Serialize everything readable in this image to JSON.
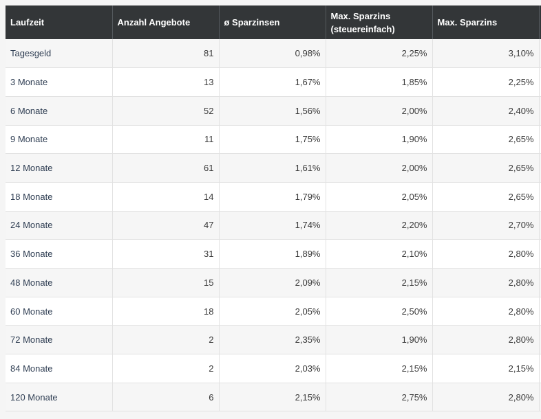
{
  "table": {
    "headers": [
      "Laufzeit",
      "Anzahl Angebote",
      "ø Sparzinsen",
      "Max. Sparzins (steuereinfach)",
      "Max. Sparzins"
    ],
    "rows": [
      [
        "Tagesgeld",
        "81",
        "0,98%",
        "2,25%",
        "3,10%"
      ],
      [
        "3 Monate",
        "13",
        "1,67%",
        "1,85%",
        "2,25%"
      ],
      [
        "6 Monate",
        "52",
        "1,56%",
        "2,00%",
        "2,40%"
      ],
      [
        "9 Monate",
        "11",
        "1,75%",
        "1,90%",
        "2,65%"
      ],
      [
        "12 Monate",
        "61",
        "1,61%",
        "2,00%",
        "2,65%"
      ],
      [
        "18 Monate",
        "14",
        "1,79%",
        "2,05%",
        "2,65%"
      ],
      [
        "24 Monate",
        "47",
        "1,74%",
        "2,20%",
        "2,70%"
      ],
      [
        "36 Monate",
        "31",
        "1,89%",
        "2,10%",
        "2,80%"
      ],
      [
        "48 Monate",
        "15",
        "2,09%",
        "2,15%",
        "2,80%"
      ],
      [
        "60 Monate",
        "18",
        "2,05%",
        "2,50%",
        "2,80%"
      ],
      [
        "72 Monate",
        "2",
        "2,35%",
        "1,90%",
        "2,80%"
      ],
      [
        "84 Monate",
        "2",
        "2,03%",
        "2,15%",
        "2,15%"
      ],
      [
        "120 Monate",
        "6",
        "2,15%",
        "2,75%",
        "2,80%"
      ]
    ]
  },
  "colors": {
    "header_background": "#333638",
    "header_text": "#ffffff",
    "row_odd": "#f6f6f6",
    "row_even": "#ffffff",
    "border": "#e2e2e2",
    "first_column_text": "#2e3d52"
  }
}
